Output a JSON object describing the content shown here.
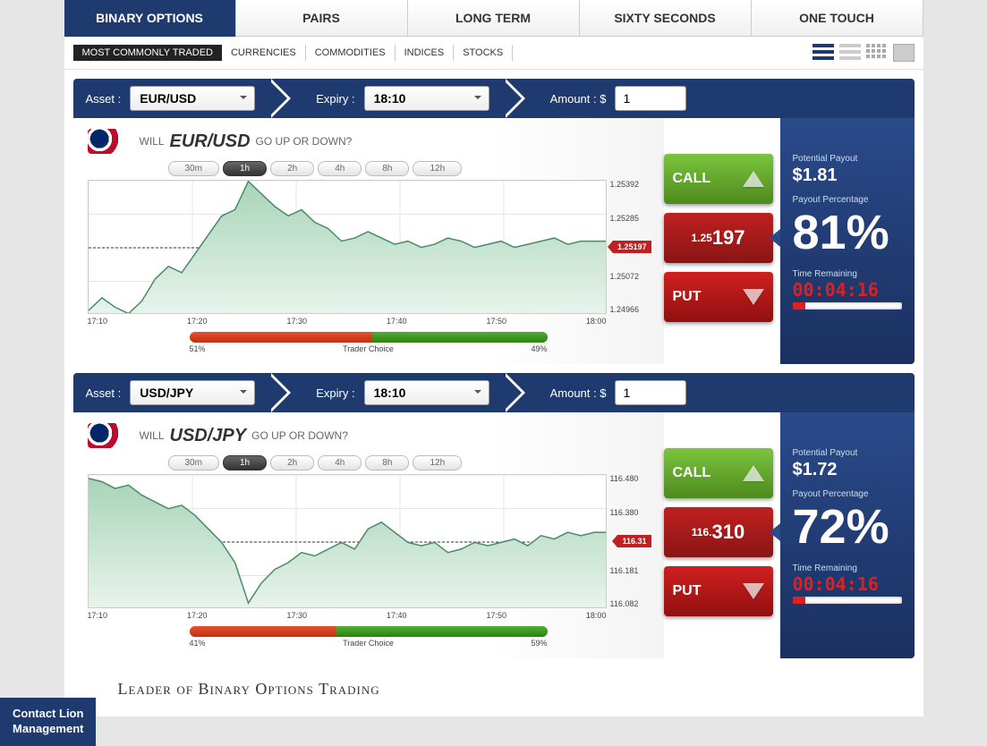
{
  "main_tabs": [
    "BINARY OPTIONS",
    "PAIRS",
    "LONG TERM",
    "SIXTY SECONDS",
    "ONE TOUCH"
  ],
  "main_tab_active": 0,
  "filter_tabs": [
    "MOST COMMONLY TRADED",
    "CURRENCIES",
    "COMMODITIES",
    "INDICES",
    "STOCKS"
  ],
  "filter_tab_active": 0,
  "timeframes": [
    "30m",
    "1h",
    "2h",
    "4h",
    "8h",
    "12h"
  ],
  "tf_active": 1,
  "labels": {
    "asset": "Asset :",
    "expiry": "Expiry :",
    "amount": "Amount : $",
    "will": "WILL",
    "updown": "GO UP OR DOWN?",
    "call": "CALL",
    "put": "PUT",
    "potential_payout": "Potential Payout",
    "payout_pct": "Payout Percentage",
    "time_remaining": "Time Remaining",
    "trader_choice": "Trader Choice"
  },
  "panels": [
    {
      "asset": "EUR/USD",
      "expiry": "18:10",
      "amount": "1",
      "price_small": "1.25",
      "price_big": "197",
      "payout": "$1.81",
      "payout_pct": "81%",
      "time_remaining": "00:04:16",
      "progress_pct": 12,
      "trader_red_pct": 51,
      "trader_green_pct": 49,
      "chart": {
        "type": "area",
        "stroke": "#4a8a6a",
        "fill_top": "#a8d4b8",
        "fill_bottom": "#e8f4ec",
        "grid_color": "#e4e4e4",
        "y_ticks": [
          "1.25392",
          "1.25285",
          "",
          "1.25072",
          "1.24966"
        ],
        "price_tag": "1.25197",
        "x_ticks": [
          "17:10",
          "17:20",
          "17:30",
          "17:40",
          "17:50",
          "18:00"
        ],
        "y_range": [
          1.24966,
          1.25392
        ],
        "points": [
          1.2498,
          1.2502,
          1.2499,
          1.2497,
          1.2501,
          1.2508,
          1.2512,
          1.251,
          1.2516,
          1.2522,
          1.2528,
          1.253,
          1.2539,
          1.2535,
          1.2531,
          1.2528,
          1.253,
          1.2526,
          1.2524,
          1.252,
          1.2521,
          1.2523,
          1.2521,
          1.2519,
          1.252,
          1.2518,
          1.2519,
          1.2521,
          1.252,
          1.2518,
          1.2519,
          1.252,
          1.2518,
          1.2519,
          1.252,
          1.2521,
          1.2519,
          1.252,
          1.252,
          1.252
        ]
      }
    },
    {
      "asset": "USD/JPY",
      "expiry": "18:10",
      "amount": "1",
      "price_small": "116.",
      "price_big": "310",
      "payout": "$1.72",
      "payout_pct": "72%",
      "time_remaining": "00:04:16",
      "progress_pct": 12,
      "trader_red_pct": 41,
      "trader_green_pct": 59,
      "chart": {
        "type": "area",
        "stroke": "#4a8a6a",
        "fill_top": "#a8d4b8",
        "fill_bottom": "#e8f4ec",
        "grid_color": "#e4e4e4",
        "y_ticks": [
          "116.480",
          "116.380",
          "",
          "116.181",
          "116.082"
        ],
        "price_tag": "116.31",
        "x_ticks": [
          "17:10",
          "17:20",
          "17:30",
          "17:40",
          "17:50",
          "18:00"
        ],
        "y_range": [
          116.082,
          116.48
        ],
        "points": [
          116.47,
          116.46,
          116.44,
          116.45,
          116.42,
          116.4,
          116.38,
          116.39,
          116.36,
          116.32,
          116.28,
          116.22,
          116.1,
          116.16,
          116.2,
          116.22,
          116.25,
          116.24,
          116.26,
          116.28,
          116.26,
          116.32,
          116.34,
          116.31,
          116.28,
          116.27,
          116.28,
          116.25,
          116.26,
          116.28,
          116.27,
          116.28,
          116.29,
          116.27,
          116.3,
          116.29,
          116.31,
          116.3,
          116.31,
          116.31
        ]
      }
    }
  ],
  "contact": {
    "line1": "Contact Lion",
    "line2": "Management"
  },
  "footer": "Leader of Binary Options Trading"
}
